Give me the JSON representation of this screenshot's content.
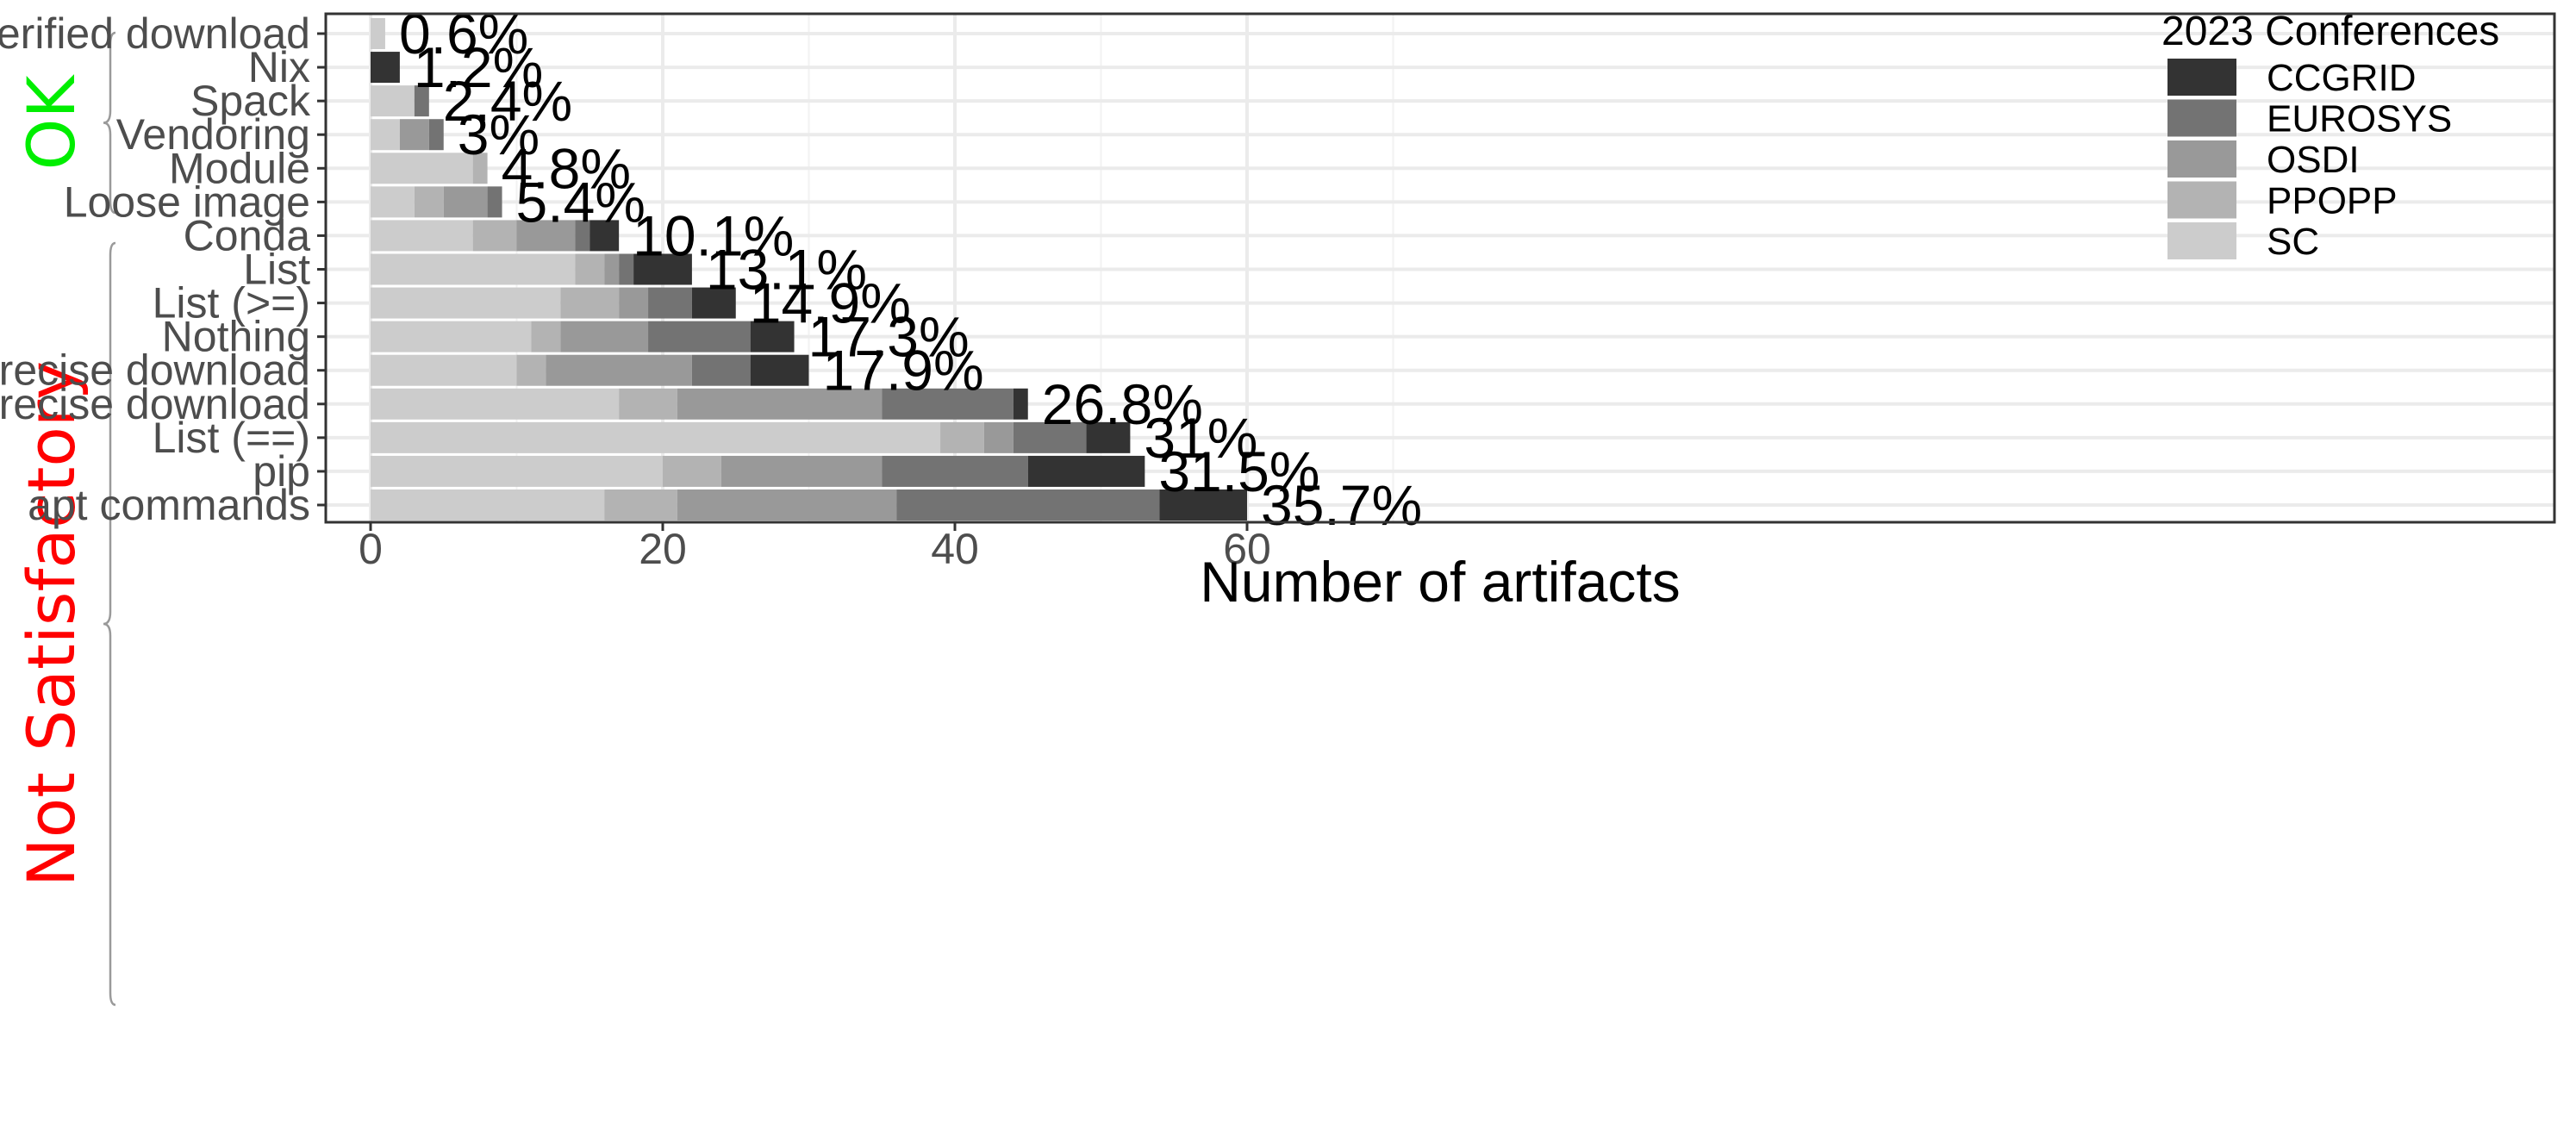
{
  "chart_data": {
    "type": "bar",
    "orientation": "horizontal",
    "stacked": true,
    "xlabel": "Number of artifacts",
    "ylabel": "",
    "xlim": [
      -3,
      67
    ],
    "xticks": [
      0,
      20,
      40,
      60
    ],
    "grid": true,
    "legend": {
      "title": "2023 Conferences",
      "placement": "top-right",
      "order": [
        "CCGRID",
        "EUROSYS",
        "OSDI",
        "PPOPP",
        "SC"
      ]
    },
    "categories": [
      "Verified download",
      "Nix",
      "Spack",
      "Vendoring",
      "Module",
      "Loose image",
      "Conda",
      "List",
      "List (>=)",
      "Nothing",
      "Precise download",
      "Imprecise download",
      "List (==)",
      "pip",
      "apt commands"
    ],
    "percent_labels": [
      "0.6%",
      "1.2%",
      "2.4%",
      "3%",
      "4.8%",
      "5.4%",
      "10.1%",
      "13.1%",
      "14.9%",
      "17.3%",
      "17.9%",
      "26.8%",
      "31%",
      "31.5%",
      "35.7%"
    ],
    "series": [
      {
        "name": "SC",
        "color": "#cccccc",
        "values": [
          1,
          0,
          3,
          2,
          7,
          3,
          7,
          14,
          13,
          11,
          10,
          17,
          39,
          20,
          16
        ]
      },
      {
        "name": "PPOPP",
        "color": "#b3b3b3",
        "values": [
          0,
          0,
          0,
          0,
          1,
          2,
          3,
          2,
          4,
          2,
          2,
          4,
          3,
          4,
          5
        ]
      },
      {
        "name": "OSDI",
        "color": "#999999",
        "values": [
          0,
          0,
          0,
          2,
          0,
          3,
          4,
          1,
          2,
          6,
          10,
          14,
          2,
          11,
          15
        ]
      },
      {
        "name": "EUROSYS",
        "color": "#737373",
        "values": [
          0,
          0,
          1,
          1,
          0,
          1,
          1,
          1,
          3,
          7,
          4,
          9,
          5,
          10,
          18
        ]
      },
      {
        "name": "CCGRID",
        "color": "#333333",
        "values": [
          0,
          2,
          0,
          0,
          0,
          0,
          2,
          4,
          3,
          3,
          4,
          1,
          3,
          8,
          6
        ]
      }
    ],
    "groups": [
      {
        "label": "OK",
        "color": "#00ee00",
        "first": "Verified download",
        "last": "Spack"
      },
      {
        "label": "Not Satisfactory",
        "color": "#ff0000",
        "first": "Vendoring",
        "last": "apt commands"
      }
    ]
  }
}
